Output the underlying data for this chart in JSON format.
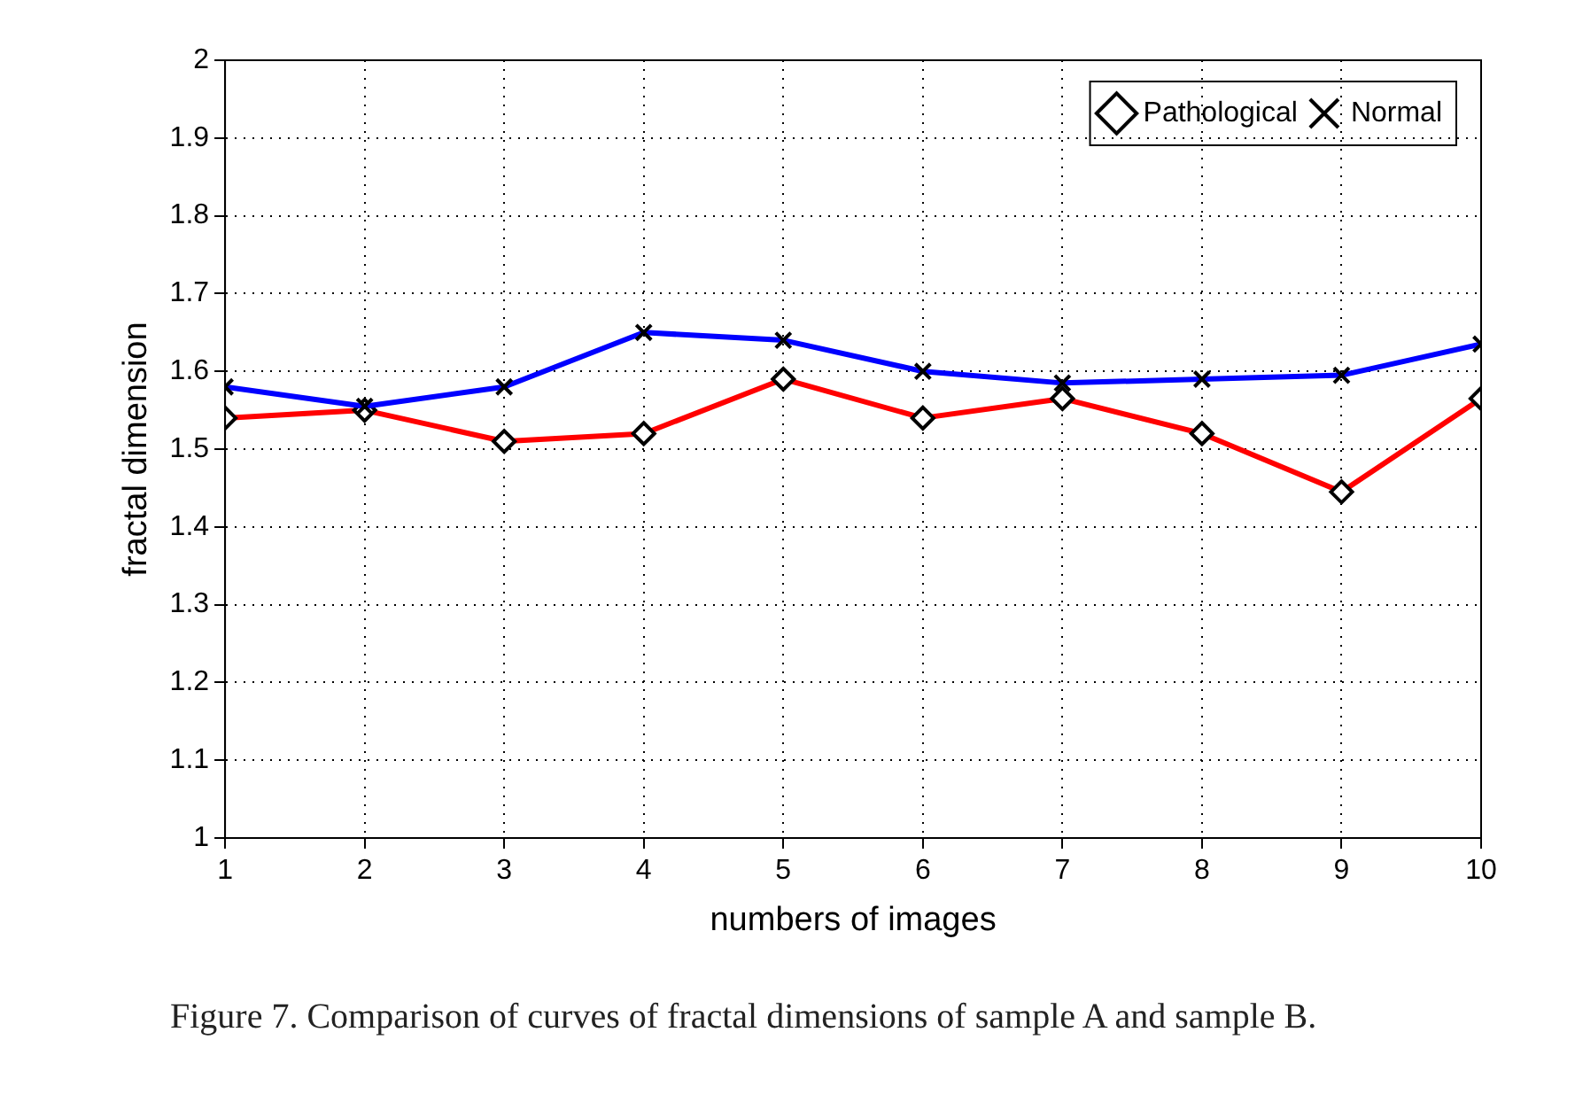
{
  "chart_data": {
    "type": "line",
    "xlabel": "numbers of images",
    "ylabel": "fractal dimension",
    "x": [
      1,
      2,
      3,
      4,
      5,
      6,
      7,
      8,
      9,
      10
    ],
    "series": [
      {
        "name": "Pathological",
        "color": "#ff0000",
        "marker": "diamond",
        "values": [
          1.54,
          1.55,
          1.51,
          1.52,
          1.59,
          1.54,
          1.565,
          1.52,
          1.445,
          1.565
        ]
      },
      {
        "name": "Normal",
        "color": "#0000ff",
        "marker": "cross",
        "values": [
          1.58,
          1.555,
          1.58,
          1.65,
          1.64,
          1.6,
          1.585,
          1.59,
          1.595,
          1.635
        ]
      }
    ],
    "xlim": [
      1,
      10
    ],
    "xticks": [
      1,
      2,
      3,
      4,
      5,
      6,
      7,
      8,
      9,
      10
    ],
    "ylim": [
      1,
      2
    ],
    "yticks": [
      1,
      1.1,
      1.2,
      1.3,
      1.4,
      1.5,
      1.6,
      1.7,
      1.8,
      1.9,
      2
    ],
    "grid": true,
    "legend": "top right",
    "line_style": "solid",
    "annotations": [
      "Figure 7. Comparison of curves of fractal dimensions of sample A and sample B."
    ]
  }
}
